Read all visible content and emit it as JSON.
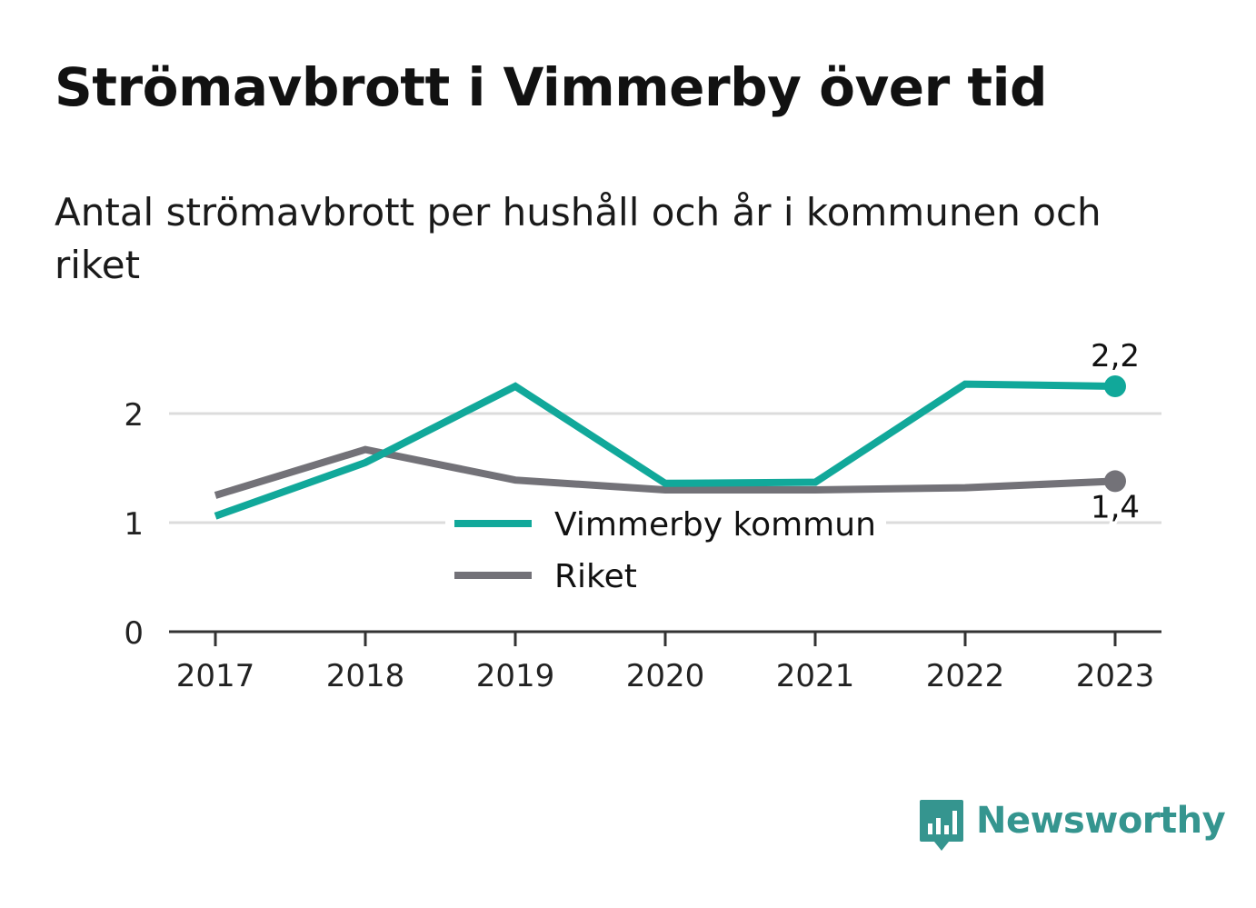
{
  "header": {
    "title": "Strömavbrott i Vimmerby över tid",
    "subtitle": "Antal strömavbrott per hushåll och år i kommunen och riket"
  },
  "chart_data": {
    "type": "line",
    "categories": [
      "2017",
      "2018",
      "2019",
      "2020",
      "2021",
      "2022",
      "2023"
    ],
    "series": [
      {
        "name": "Vimmerby kommun",
        "color": "#11a89a",
        "values": [
          1.06,
          1.55,
          2.25,
          1.36,
          1.37,
          2.27,
          2.25
        ],
        "end_label": "2,2"
      },
      {
        "name": "Riket",
        "color": "#737278",
        "values": [
          1.25,
          1.67,
          1.39,
          1.3,
          1.3,
          1.32,
          1.38
        ],
        "end_label": "1,4"
      }
    ],
    "yticks": [
      "0",
      "1",
      "2"
    ],
    "ylim": [
      0,
      2.3
    ],
    "grid": true,
    "legend_position": "center"
  },
  "branding": {
    "logo_text": "Newsworthy",
    "logo_icon": "bar-chart-speech-bubble-icon",
    "color": "#35958f"
  }
}
